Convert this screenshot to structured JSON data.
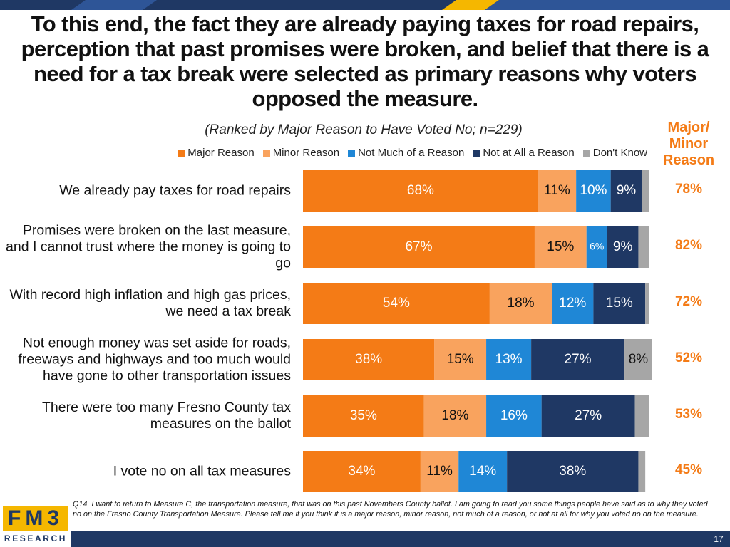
{
  "chart_data": {
    "type": "stacked-bar-horizontal",
    "title": "To this end, the fact they are already paying taxes for road repairs, perception that past promises were broken, and belief that there is a need for a tax break were selected as primary reasons why voters opposed the measure.",
    "subtitle": "(Ranked by Major Reason to Have Voted No; n=229)",
    "categories": [
      "We already pay taxes for road repairs",
      "Promises were broken on the last measure, and I cannot trust where the money is going to go",
      "With record high inflation and high gas prices, we need a tax break",
      "Not enough money was set aside for roads, freeways and highways and too much would have gone to other transportation issues",
      "There were too many Fresno County tax measures on the ballot",
      "I vote no on all tax measures"
    ],
    "xlim": [
      0,
      100
    ],
    "series": [
      {
        "name": "Major Reason",
        "color": "#f47b16",
        "values": [
          68,
          67,
          54,
          38,
          35,
          34
        ],
        "value_labels": [
          "68%",
          "67%",
          "54%",
          "38%",
          "35%",
          "34%"
        ]
      },
      {
        "name": "Minor Reason",
        "color": "#f9a35e",
        "values": [
          11,
          15,
          18,
          15,
          18,
          11
        ],
        "value_labels": [
          "11%",
          "15%",
          "18%",
          "15%",
          "18%",
          "11%"
        ]
      },
      {
        "name": "Not Much of a Reason",
        "color": "#1f87d6",
        "values": [
          10,
          6,
          12,
          13,
          16,
          14
        ],
        "value_labels": [
          "10%",
          "6%",
          "12%",
          "13%",
          "16%",
          "14%"
        ]
      },
      {
        "name": "Not at All a Reason",
        "color": "#1f3864",
        "values": [
          9,
          9,
          15,
          27,
          27,
          38
        ],
        "value_labels": [
          "9%",
          "9%",
          "15%",
          "27%",
          "27%",
          "38%"
        ]
      },
      {
        "name": "Don't Know",
        "color": "#a6a6a6",
        "values": [
          2,
          3,
          1,
          8,
          4,
          2
        ],
        "value_labels": [
          null,
          null,
          null,
          "8%",
          null,
          null
        ]
      }
    ],
    "totals": {
      "name": "Major/ Minor Reason",
      "color": "#f47b16",
      "values": [
        78,
        82,
        72,
        52,
        53,
        45
      ],
      "value_labels": [
        "78%",
        "82%",
        "72%",
        "52%",
        "53%",
        "45%"
      ]
    }
  },
  "footnote": "Q14. I want to return to Measure C, the transportation measure, that was on this past Novembers County ballot. I am going to read you some things people have said as to why they voted no on the Fresno County Transportation Measure. Please tell me if you think it is a major reason, minor reason, not much of a reason, or not at all for why you voted no on the measure.",
  "logo": {
    "top": "FM3",
    "bottom": "RESEARCH"
  },
  "page_number": "17"
}
